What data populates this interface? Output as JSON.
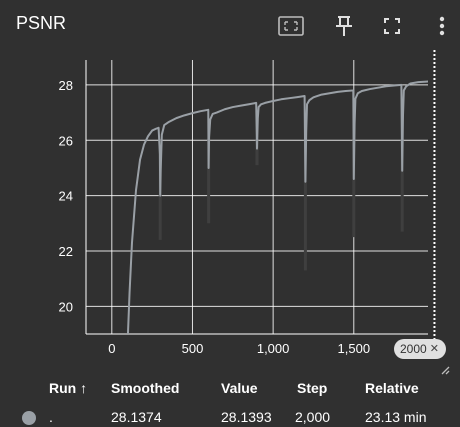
{
  "card": {
    "title": "PSNR",
    "icons": [
      "fit-domain-icon",
      "pin-icon",
      "fullscreen-icon",
      "more-vert-icon"
    ]
  },
  "colors": {
    "background": "#303030",
    "series": "#9aa0a6",
    "series_dark": "#3f3f3f",
    "grid": "#ffffff",
    "cursor": "#ffffff"
  },
  "chart_data": {
    "type": "line",
    "title": "",
    "xlabel": "",
    "ylabel": "",
    "xlim": [
      -160,
      1960
    ],
    "ylim": [
      19,
      28.9
    ],
    "xticks": [
      0,
      500,
      1000,
      1500
    ],
    "xtick_labels": [
      "0",
      "500",
      "1,000",
      "1,500"
    ],
    "yticks": [
      20,
      22,
      24,
      26,
      28
    ],
    "ytick_labels": [
      "20",
      "22",
      "24",
      "26",
      "28"
    ],
    "grid": true,
    "cursor_step": 2000,
    "series": [
      {
        "name": ".",
        "x": [
          100,
          110,
          125,
          150,
          175,
          200,
          225,
          250,
          275,
          290,
          298,
          300,
          303,
          310,
          325,
          350,
          400,
          450,
          500,
          550,
          598,
          600,
          603,
          610,
          625,
          650,
          700,
          750,
          800,
          850,
          895,
          900,
          905,
          910,
          925,
          950,
          1000,
          1050,
          1100,
          1150,
          1195,
          1200,
          1205,
          1210,
          1225,
          1250,
          1300,
          1350,
          1400,
          1450,
          1497,
          1500,
          1505,
          1510,
          1525,
          1550,
          1600,
          1650,
          1700,
          1750,
          1795,
          1800,
          1805,
          1810,
          1825,
          1850,
          1900,
          1950,
          2000
        ],
        "values": [
          19,
          20.5,
          22.3,
          24.2,
          25.3,
          25.85,
          26.15,
          26.35,
          26.42,
          26.45,
          25.5,
          24.0,
          24.9,
          26.2,
          26.55,
          26.65,
          26.8,
          26.9,
          26.98,
          27.05,
          27.1,
          25.0,
          26.1,
          26.75,
          26.95,
          27.0,
          27.12,
          27.2,
          27.25,
          27.3,
          27.35,
          25.7,
          26.8,
          27.2,
          27.3,
          27.35,
          27.42,
          27.48,
          27.52,
          27.56,
          27.6,
          24.5,
          26.3,
          27.3,
          27.45,
          27.55,
          27.65,
          27.7,
          27.75,
          27.78,
          27.8,
          24.6,
          26.6,
          27.5,
          27.7,
          27.78,
          27.85,
          27.9,
          27.95,
          27.98,
          28.0,
          24.9,
          26.9,
          27.8,
          27.95,
          28.05,
          28.1,
          28.12,
          28.14
        ]
      }
    ],
    "raw_dips": [
      {
        "x": 300,
        "y_min": 22.4
      },
      {
        "x": 600,
        "y_min": 23.0
      },
      {
        "x": 900,
        "y_min": 25.1
      },
      {
        "x": 1200,
        "y_min": 21.3
      },
      {
        "x": 1500,
        "y_min": 22.5
      },
      {
        "x": 1800,
        "y_min": 22.7
      }
    ]
  },
  "step_chip": {
    "label": "2000",
    "close": "✕"
  },
  "table": {
    "headers": {
      "run": "Run ↑",
      "smoothed": "Smoothed",
      "value": "Value",
      "step": "Step",
      "relative": "Relative"
    },
    "rows": [
      {
        "run": ".",
        "smoothed": "28.1374",
        "value": "28.1393",
        "step": "2,000",
        "relative": "23.13 min"
      }
    ]
  }
}
